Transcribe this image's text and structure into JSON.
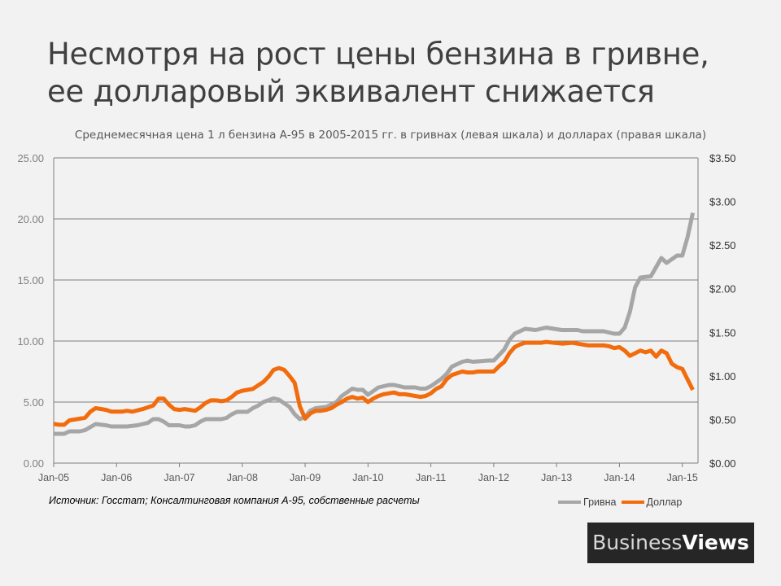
{
  "title_line1": "Несмотря на рост цены бензина в гривне,",
  "title_line2": "ее долларовый эквивалент снижается",
  "subtitle": "Среднемесячная цена 1 л бензина А-95 в 2005-2015 гг. в гривнах (левая шкала) и долларах (правая шкала)",
  "source": "Источник: Госстат; Консалтинговая компания А-95, собственные расчеты",
  "brand": {
    "part1": "Business",
    "part2": "Views"
  },
  "colors": {
    "hryvnia": "#a6a6a6",
    "dollar": "#f26c0d",
    "grid": "#7f7f7f"
  },
  "chart_data": {
    "type": "line",
    "title": "Несмотря на рост цены бензина в гривне, ее долларовый эквивалент снижается",
    "subtitle": "Среднемесячная цена 1 л бензина А-95 в 2005-2015 гг. в гривнах (левая шкала) и долларах (правая шкала)",
    "x_ticks": [
      "Jan-05",
      "Jan-06",
      "Jan-07",
      "Jan-08",
      "Jan-09",
      "Jan-10",
      "Jan-11",
      "Jan-12",
      "Jan-13",
      "Jan-14",
      "Jan-15"
    ],
    "y_left": {
      "ylim": [
        0,
        25
      ],
      "ticks": [
        "0.00",
        "5.00",
        "10.00",
        "15.00",
        "20.00",
        "25.00"
      ]
    },
    "y_right": {
      "ylim": [
        0,
        3.5
      ],
      "ticks": [
        "$0.00",
        "$0.50",
        "$1.00",
        "$1.50",
        "$2.00",
        "$2.50",
        "$3.00",
        "$3.50"
      ]
    },
    "grid": "horizontal",
    "legend_position": "bottom-right",
    "series": [
      {
        "name": "Гривна",
        "axis": "left",
        "color": "#a6a6a6",
        "points": [
          [
            "2005-01",
            2.4
          ],
          [
            "2005-03",
            2.4
          ],
          [
            "2005-04",
            2.6
          ],
          [
            "2005-06",
            2.6
          ],
          [
            "2005-07",
            2.7
          ],
          [
            "2005-09",
            3.2
          ],
          [
            "2005-11",
            3.1
          ],
          [
            "2005-12",
            3.0
          ],
          [
            "2006-02",
            3.0
          ],
          [
            "2006-03",
            3.0
          ],
          [
            "2006-05",
            3.1
          ],
          [
            "2006-07",
            3.3
          ],
          [
            "2006-08",
            3.6
          ],
          [
            "2006-09",
            3.6
          ],
          [
            "2006-10",
            3.4
          ],
          [
            "2006-11",
            3.1
          ],
          [
            "2006-12",
            3.1
          ],
          [
            "2007-01",
            3.1
          ],
          [
            "2007-02",
            3.0
          ],
          [
            "2007-03",
            3.0
          ],
          [
            "2007-04",
            3.1
          ],
          [
            "2007-05",
            3.4
          ],
          [
            "2007-06",
            3.6
          ],
          [
            "2007-07",
            3.6
          ],
          [
            "2007-09",
            3.6
          ],
          [
            "2007-10",
            3.7
          ],
          [
            "2007-11",
            4.0
          ],
          [
            "2007-12",
            4.2
          ],
          [
            "2008-02",
            4.2
          ],
          [
            "2008-03",
            4.5
          ],
          [
            "2008-04",
            4.7
          ],
          [
            "2008-05",
            5.0
          ],
          [
            "2008-07",
            5.3
          ],
          [
            "2008-08",
            5.2
          ],
          [
            "2008-09",
            4.9
          ],
          [
            "2008-10",
            4.6
          ],
          [
            "2008-11",
            4.0
          ],
          [
            "2008-12",
            3.6
          ],
          [
            "2009-01",
            3.8
          ],
          [
            "2009-02",
            4.3
          ],
          [
            "2009-03",
            4.5
          ],
          [
            "2009-05",
            4.6
          ],
          [
            "2009-06",
            4.8
          ],
          [
            "2009-07",
            5.0
          ],
          [
            "2009-08",
            5.5
          ],
          [
            "2009-09",
            5.8
          ],
          [
            "2009-10",
            6.1
          ],
          [
            "2009-11",
            6.0
          ],
          [
            "2009-12",
            6.0
          ],
          [
            "2010-01",
            5.6
          ],
          [
            "2010-02",
            5.9
          ],
          [
            "2010-03",
            6.2
          ],
          [
            "2010-04",
            6.3
          ],
          [
            "2010-05",
            6.4
          ],
          [
            "2010-06",
            6.4
          ],
          [
            "2010-07",
            6.3
          ],
          [
            "2010-08",
            6.2
          ],
          [
            "2010-10",
            6.2
          ],
          [
            "2010-11",
            6.1
          ],
          [
            "2010-12",
            6.1
          ],
          [
            "2011-01",
            6.3
          ],
          [
            "2011-03",
            6.9
          ],
          [
            "2011-04",
            7.3
          ],
          [
            "2011-05",
            7.9
          ],
          [
            "2011-06",
            8.1
          ],
          [
            "2011-07",
            8.3
          ],
          [
            "2011-08",
            8.4
          ],
          [
            "2011-09",
            8.3
          ],
          [
            "2011-12",
            8.4
          ],
          [
            "2012-01",
            8.4
          ],
          [
            "2012-03",
            9.3
          ],
          [
            "2012-04",
            10.1
          ],
          [
            "2012-05",
            10.6
          ],
          [
            "2012-07",
            11.0
          ],
          [
            "2012-09",
            10.9
          ],
          [
            "2012-10",
            11.0
          ],
          [
            "2012-11",
            11.1
          ],
          [
            "2013-02",
            10.9
          ],
          [
            "2013-05",
            10.9
          ],
          [
            "2013-06",
            10.8
          ],
          [
            "2013-07",
            10.8
          ],
          [
            "2013-10",
            10.8
          ],
          [
            "2013-11",
            10.7
          ],
          [
            "2013-12",
            10.6
          ],
          [
            "2014-01",
            10.6
          ],
          [
            "2014-02",
            11.1
          ],
          [
            "2014-03",
            12.4
          ],
          [
            "2014-04",
            14.4
          ],
          [
            "2014-05",
            15.2
          ],
          [
            "2014-07",
            15.3
          ],
          [
            "2014-09",
            16.8
          ],
          [
            "2014-10",
            16.4
          ],
          [
            "2014-12",
            17.0
          ],
          [
            "2015-01",
            17.0
          ],
          [
            "2015-02",
            18.5
          ],
          [
            "2015-03",
            20.5
          ]
        ]
      },
      {
        "name": "Доллар",
        "axis": "right",
        "color": "#f26c0d",
        "points": [
          [
            "2005-01",
            0.45
          ],
          [
            "2005-02",
            0.44
          ],
          [
            "2005-03",
            0.44
          ],
          [
            "2005-04",
            0.49
          ],
          [
            "2005-06",
            0.51
          ],
          [
            "2005-07",
            0.52
          ],
          [
            "2005-08",
            0.59
          ],
          [
            "2005-09",
            0.63
          ],
          [
            "2005-11",
            0.61
          ],
          [
            "2005-12",
            0.59
          ],
          [
            "2006-02",
            0.59
          ],
          [
            "2006-03",
            0.6
          ],
          [
            "2006-04",
            0.59
          ],
          [
            "2006-06",
            0.62
          ],
          [
            "2006-08",
            0.66
          ],
          [
            "2006-09",
            0.74
          ],
          [
            "2006-10",
            0.74
          ],
          [
            "2006-11",
            0.67
          ],
          [
            "2006-12",
            0.62
          ],
          [
            "2007-01",
            0.61
          ],
          [
            "2007-02",
            0.62
          ],
          [
            "2007-04",
            0.6
          ],
          [
            "2007-05",
            0.64
          ],
          [
            "2007-06",
            0.69
          ],
          [
            "2007-07",
            0.72
          ],
          [
            "2007-08",
            0.72
          ],
          [
            "2007-09",
            0.71
          ],
          [
            "2007-10",
            0.72
          ],
          [
            "2007-11",
            0.76
          ],
          [
            "2007-12",
            0.81
          ],
          [
            "2008-01",
            0.83
          ],
          [
            "2008-02",
            0.84
          ],
          [
            "2008-03",
            0.85
          ],
          [
            "2008-04",
            0.89
          ],
          [
            "2008-05",
            0.93
          ],
          [
            "2008-06",
            0.99
          ],
          [
            "2008-07",
            1.07
          ],
          [
            "2008-08",
            1.09
          ],
          [
            "2008-09",
            1.07
          ],
          [
            "2008-10",
            1.0
          ],
          [
            "2008-11",
            0.92
          ],
          [
            "2008-12",
            0.65
          ],
          [
            "2009-01",
            0.51
          ],
          [
            "2009-02",
            0.57
          ],
          [
            "2009-03",
            0.6
          ],
          [
            "2009-04",
            0.6
          ],
          [
            "2009-05",
            0.61
          ],
          [
            "2009-06",
            0.63
          ],
          [
            "2009-07",
            0.67
          ],
          [
            "2009-08",
            0.7
          ],
          [
            "2009-09",
            0.74
          ],
          [
            "2009-10",
            0.76
          ],
          [
            "2009-11",
            0.74
          ],
          [
            "2009-12",
            0.75
          ],
          [
            "2010-01",
            0.7
          ],
          [
            "2010-02",
            0.74
          ],
          [
            "2010-03",
            0.77
          ],
          [
            "2010-04",
            0.79
          ],
          [
            "2010-05",
            0.8
          ],
          [
            "2010-06",
            0.81
          ],
          [
            "2010-07",
            0.79
          ],
          [
            "2010-08",
            0.79
          ],
          [
            "2010-09",
            0.78
          ],
          [
            "2010-10",
            0.77
          ],
          [
            "2010-11",
            0.76
          ],
          [
            "2010-12",
            0.77
          ],
          [
            "2011-01",
            0.8
          ],
          [
            "2011-02",
            0.85
          ],
          [
            "2011-03",
            0.88
          ],
          [
            "2011-04",
            0.96
          ],
          [
            "2011-05",
            1.01
          ],
          [
            "2011-06",
            1.03
          ],
          [
            "2011-07",
            1.05
          ],
          [
            "2011-08",
            1.04
          ],
          [
            "2011-09",
            1.04
          ],
          [
            "2011-10",
            1.05
          ],
          [
            "2011-11",
            1.05
          ],
          [
            "2012-01",
            1.05
          ],
          [
            "2012-02",
            1.11
          ],
          [
            "2012-03",
            1.16
          ],
          [
            "2012-04",
            1.26
          ],
          [
            "2012-05",
            1.33
          ],
          [
            "2012-06",
            1.36
          ],
          [
            "2012-07",
            1.38
          ],
          [
            "2012-10",
            1.38
          ],
          [
            "2012-11",
            1.39
          ],
          [
            "2013-02",
            1.37
          ],
          [
            "2013-04",
            1.38
          ],
          [
            "2013-06",
            1.36
          ],
          [
            "2013-07",
            1.35
          ],
          [
            "2013-10",
            1.35
          ],
          [
            "2013-11",
            1.34
          ],
          [
            "2013-12",
            1.32
          ],
          [
            "2014-01",
            1.33
          ],
          [
            "2014-02",
            1.29
          ],
          [
            "2014-03",
            1.23
          ],
          [
            "2014-04",
            1.26
          ],
          [
            "2014-05",
            1.29
          ],
          [
            "2014-06",
            1.27
          ],
          [
            "2014-07",
            1.29
          ],
          [
            "2014-08",
            1.22
          ],
          [
            "2014-09",
            1.29
          ],
          [
            "2014-10",
            1.26
          ],
          [
            "2014-11",
            1.14
          ],
          [
            "2014-12",
            1.1
          ],
          [
            "2015-01",
            1.08
          ],
          [
            "2015-02",
            0.96
          ],
          [
            "2015-03",
            0.84
          ]
        ]
      }
    ]
  }
}
